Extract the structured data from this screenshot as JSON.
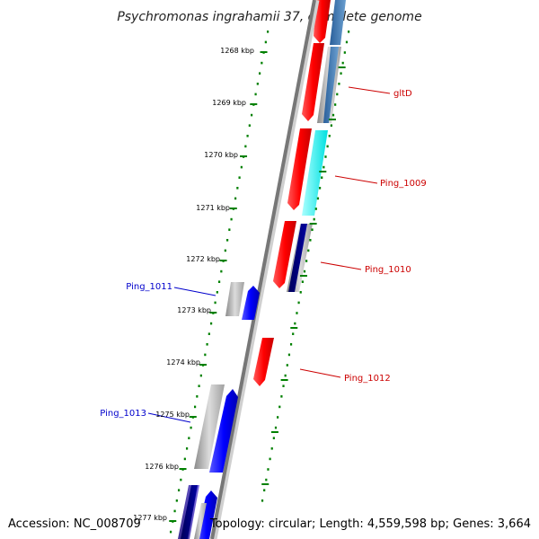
{
  "title": "Psychromonas ingrahamii 37, complete genome",
  "footer": {
    "accession": "Accession: NC_008709",
    "topology": "Topology: circular; Length: 4,559,598 bp; Genes: 3,664"
  },
  "ticks": [
    {
      "label": "1268 kbp"
    },
    {
      "label": "1269 kbp"
    },
    {
      "label": "1270 kbp"
    },
    {
      "label": "1271 kbp"
    },
    {
      "label": "1272 kbp"
    },
    {
      "label": "1273 kbp"
    },
    {
      "label": "1274 kbp"
    },
    {
      "label": "1275 kbp"
    },
    {
      "label": "1276 kbp"
    },
    {
      "label": "1277 kbp"
    }
  ],
  "gene_labels": [
    {
      "text": "gltD",
      "strand": "reverse",
      "color": "#cc0000"
    },
    {
      "text": "Ping_1009",
      "strand": "reverse",
      "color": "#cc0000"
    },
    {
      "text": "Ping_1010",
      "strand": "reverse",
      "color": "#cc0000"
    },
    {
      "text": "Ping_1012",
      "strand": "reverse",
      "color": "#cc0000"
    },
    {
      "text": "Ping_1011",
      "strand": "forward",
      "color": "#0000cc"
    },
    {
      "text": "Ping_1013",
      "strand": "forward",
      "color": "#0000cc"
    }
  ],
  "colors": {
    "backbone": "#888888",
    "ticks": "#008000",
    "cds_reverse": "#ff0000",
    "cds_forward": "#0000ff",
    "gc_track": "#bbbbbb",
    "cyan_track": "#00ffff",
    "navy_track": "#000080",
    "steel_track": "#4682b4"
  }
}
